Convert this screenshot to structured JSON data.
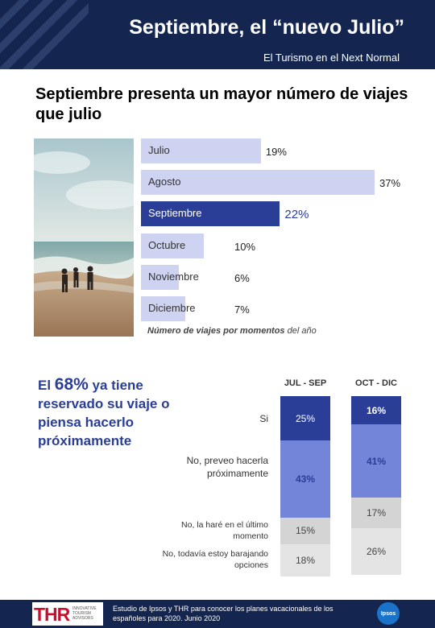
{
  "header": {
    "title": "Septiembre, el “nuevo Julio”",
    "subtitle": "El Turismo en el Next Normal"
  },
  "section": {
    "title": "Septiembre presenta un mayor número de viajes que julio"
  },
  "colors": {
    "navy": "#14264f",
    "accent": "#2a3e97",
    "light_bar": "#cdd3f0",
    "mid_blue": "#7285d8",
    "grey": "#d4d4d4",
    "light_grey": "#e4e4e4"
  },
  "chart_data": [
    {
      "type": "bar",
      "orientation": "horizontal",
      "categories": [
        "Julio",
        "Agosto",
        "Septiembre",
        "Octubre",
        "Noviembre",
        "Diciembre"
      ],
      "values": [
        19,
        37,
        22,
        10,
        6,
        7
      ],
      "value_labels": [
        "19%",
        "37%",
        "22%",
        "10%",
        "6%",
        "7%"
      ],
      "highlight": "Septiembre",
      "caption_bold": "Número de viajes por momentos",
      "caption_rest": " del año"
    },
    {
      "type": "bar",
      "stacked": true,
      "categories": [
        "JUL - SEP",
        "OCT - DIC"
      ],
      "series": [
        {
          "name": "Si",
          "values": [
            25,
            16
          ],
          "labels": [
            "25%",
            "16%"
          ]
        },
        {
          "name": "No, preveo hacerla próximamente",
          "values": [
            43,
            41
          ],
          "labels": [
            "43%",
            "41%"
          ]
        },
        {
          "name": "No, la haré en el último momento",
          "values": [
            15,
            17
          ],
          "labels": [
            "15%",
            "17%"
          ]
        },
        {
          "name": "No, todavía estoy barajando opciones",
          "values": [
            18,
            26
          ],
          "labels": [
            "18%",
            "26%"
          ]
        }
      ]
    }
  ],
  "callout": {
    "pre": "El ",
    "big": "68%",
    "rest": " ya tiene reservado su viaje o piensa hacerlo próximamente"
  },
  "footer": {
    "logo_text": "THR",
    "logo_small": "INNOVATIVE TOURISM ADVISORS",
    "text": "Estudio de Ipsos y THR para conocer los planes vacacionales de los españoles para 2020. Junio 2020",
    "ipsos": "Ipsos"
  }
}
